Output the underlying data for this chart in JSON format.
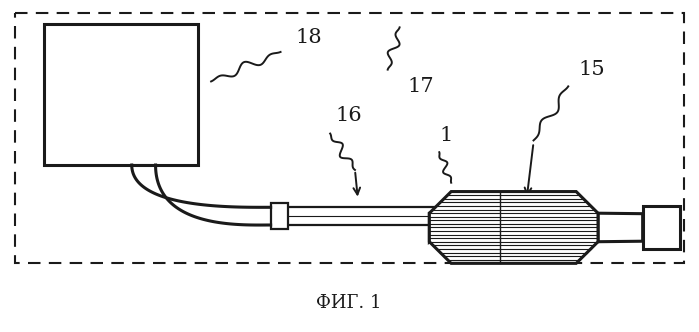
{
  "title": "ФИГ. 1",
  "title_fontsize": 13,
  "background_color": "#ffffff",
  "black": "#1a1a1a",
  "white": "#ffffff"
}
